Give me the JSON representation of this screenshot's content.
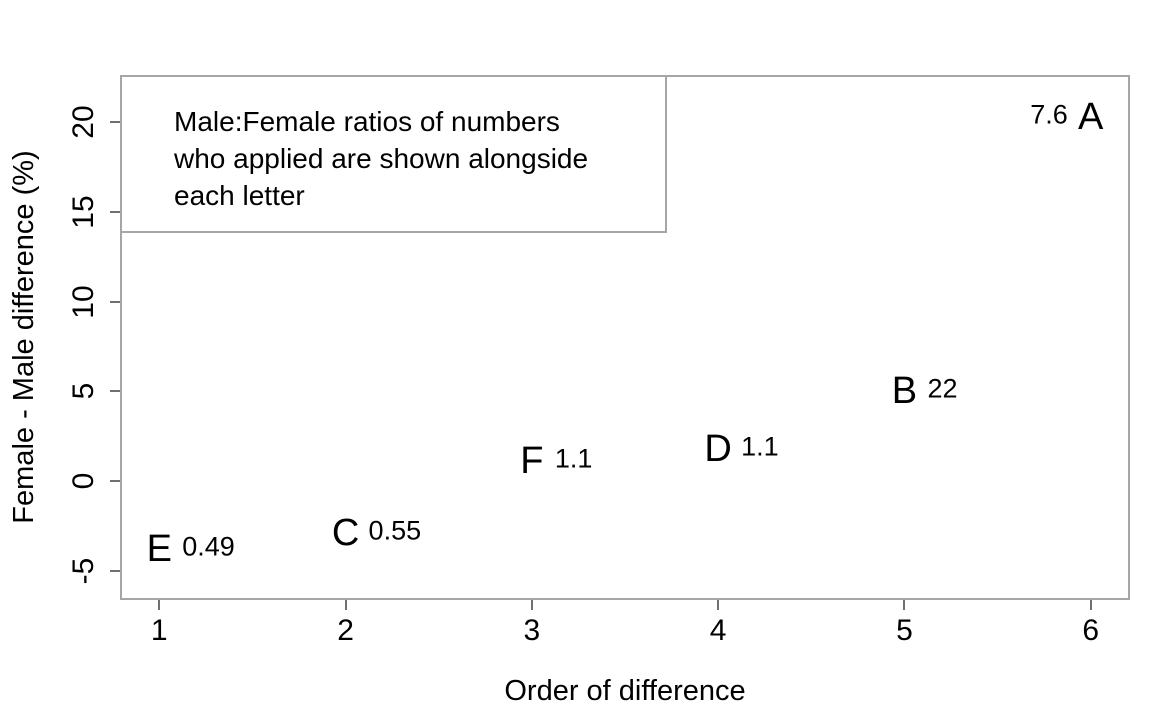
{
  "figure": {
    "annotation_lines": [
      "Male:Female ratios of numbers",
      "who applied are shown alongside",
      "each letter"
    ]
  },
  "chart_data": {
    "type": "scatter",
    "title": "",
    "xlabel": "Order of difference",
    "ylabel": "Female - Male difference (%)",
    "xlim": [
      0.8,
      6.2
    ],
    "ylim": [
      -6.5,
      22.5
    ],
    "x_ticks": [
      1,
      2,
      3,
      4,
      5,
      6
    ],
    "y_ticks": [
      -5,
      0,
      5,
      10,
      15,
      20
    ],
    "grid": false,
    "legend": "none",
    "annotation": "Male:Female ratios of numbers who applied are shown alongside each letter",
    "points": [
      {
        "label": "E",
        "x": 1,
        "y": -3.8,
        "ratio": "0.49",
        "ratio_side": "right"
      },
      {
        "label": "C",
        "x": 2,
        "y": -2.9,
        "ratio": "0.55",
        "ratio_side": "right"
      },
      {
        "label": "F",
        "x": 3,
        "y": 1.1,
        "ratio": "1.1",
        "ratio_side": "right"
      },
      {
        "label": "D",
        "x": 4,
        "y": 1.8,
        "ratio": "1.1",
        "ratio_side": "right"
      },
      {
        "label": "B",
        "x": 5,
        "y": 5.0,
        "ratio": "22",
        "ratio_side": "right"
      },
      {
        "label": "A",
        "x": 6,
        "y": 20.3,
        "ratio": "7.6",
        "ratio_side": "left"
      }
    ],
    "colors": {
      "text": "#000000",
      "box_border": "#a6a6a6",
      "tick": "#707070",
      "background": "#ffffff"
    }
  }
}
